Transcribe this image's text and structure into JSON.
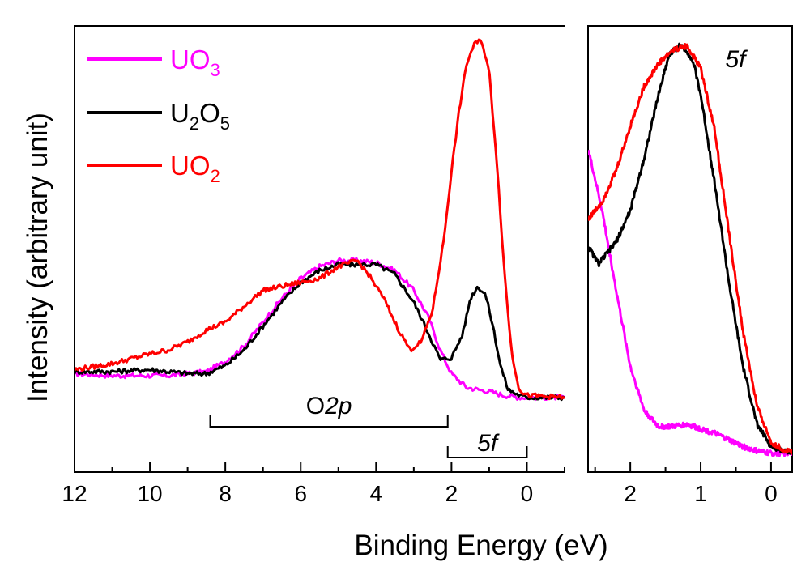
{
  "chart_data": [
    {
      "type": "line",
      "panel": "main",
      "xlabel": "Binding Energy (eV)",
      "ylabel": "Intensity (arbitrary unit)",
      "xlim": [
        12,
        -1
      ],
      "ylim": [
        0,
        1
      ],
      "x_direction": "reversed",
      "x_ticks": [
        "12",
        "10",
        "8",
        "6",
        "4",
        "2",
        "0"
      ],
      "y_ticks": "none",
      "grid": false,
      "legend_position": "top-left",
      "legend": [
        {
          "base": "UO",
          "sub": "3",
          "suffix": "",
          "color": "#ff00ff"
        },
        {
          "base": "U",
          "sub": "2",
          "mid": "O",
          "sub2": "5",
          "color": "#000000"
        },
        {
          "base": "UO",
          "sub": "2",
          "suffix": "",
          "color": "#ff0000"
        }
      ],
      "annotations": {
        "o2p": {
          "pre": "O",
          "ital": "2p",
          "from_x": 8.4,
          "to_x": 2.1
        },
        "f5": {
          "text": "5f",
          "from_x": 2.1,
          "to_x": 0
        }
      },
      "series": [
        {
          "name": "UO3",
          "color": "#ff00ff",
          "x": [
            12,
            11,
            10,
            9.5,
            9,
            8.5,
            8,
            7.5,
            7,
            6.5,
            6,
            5.5,
            5,
            4.5,
            4,
            3.5,
            3,
            2.6,
            2.3,
            2.0,
            1.6,
            1.0,
            0.6,
            0.2,
            -1
          ],
          "y": [
            0.14,
            0.135,
            0.135,
            0.135,
            0.14,
            0.145,
            0.17,
            0.21,
            0.27,
            0.33,
            0.38,
            0.41,
            0.425,
            0.425,
            0.42,
            0.4,
            0.35,
            0.28,
            0.2,
            0.14,
            0.105,
            0.095,
            0.085,
            0.08,
            0.08
          ]
        },
        {
          "name": "U2O5",
          "color": "#000000",
          "x": [
            12,
            11,
            10,
            9.5,
            9,
            8.5,
            8,
            7.5,
            7,
            6.5,
            6,
            5.5,
            5,
            4.5,
            4,
            3.5,
            3,
            2.6,
            2.3,
            2.0,
            1.7,
            1.5,
            1.3,
            1.1,
            0.9,
            0.7,
            0.5,
            0.2,
            0,
            -1
          ],
          "y": [
            0.145,
            0.145,
            0.15,
            0.145,
            0.14,
            0.14,
            0.16,
            0.2,
            0.26,
            0.32,
            0.37,
            0.4,
            0.415,
            0.415,
            0.415,
            0.39,
            0.32,
            0.24,
            0.175,
            0.18,
            0.24,
            0.33,
            0.36,
            0.34,
            0.26,
            0.16,
            0.1,
            0.085,
            0.08,
            0.08
          ]
        },
        {
          "name": "UO2",
          "color": "#ff0000",
          "x": [
            12,
            11,
            10,
            9.5,
            9,
            8.5,
            8,
            7.5,
            7,
            6.5,
            6,
            5.5,
            5,
            4.5,
            4.2,
            3.8,
            3.4,
            3.1,
            2.8,
            2.5,
            2.2,
            2.0,
            1.8,
            1.6,
            1.4,
            1.2,
            1.0,
            0.8,
            0.6,
            0.4,
            0.2,
            0,
            -1
          ],
          "y": [
            0.15,
            0.165,
            0.19,
            0.2,
            0.22,
            0.25,
            0.27,
            0.31,
            0.35,
            0.36,
            0.37,
            0.38,
            0.41,
            0.425,
            0.39,
            0.33,
            0.25,
            0.2,
            0.22,
            0.3,
            0.48,
            0.65,
            0.8,
            0.92,
            0.97,
            0.98,
            0.9,
            0.68,
            0.4,
            0.19,
            0.1,
            0.085,
            0.08
          ]
        }
      ]
    },
    {
      "type": "line",
      "panel": "inset-right",
      "title": "5f",
      "xlim": [
        2.6,
        -0.3
      ],
      "ylim": [
        0,
        1
      ],
      "x_direction": "reversed",
      "x_ticks": [
        "2",
        "1",
        "0"
      ],
      "y_ticks": "none",
      "series": [
        {
          "name": "UO3",
          "color": "#ff00ff",
          "x": [
            2.6,
            2.4,
            2.2,
            2.0,
            1.8,
            1.6,
            1.4,
            1.2,
            1.0,
            0.8,
            0.6,
            0.4,
            0.2,
            0,
            -0.3
          ],
          "y": [
            0.74,
            0.6,
            0.42,
            0.25,
            0.15,
            0.115,
            0.115,
            0.12,
            0.11,
            0.1,
            0.085,
            0.07,
            0.06,
            0.055,
            0.055
          ]
        },
        {
          "name": "U2O5",
          "color": "#000000",
          "x": [
            2.6,
            2.45,
            2.35,
            2.2,
            2.0,
            1.8,
            1.6,
            1.45,
            1.3,
            1.2,
            1.1,
            1.0,
            0.8,
            0.6,
            0.4,
            0.2,
            0,
            -0.2,
            -0.3
          ],
          "y": [
            0.52,
            0.48,
            0.5,
            0.53,
            0.6,
            0.72,
            0.86,
            0.95,
            0.97,
            0.96,
            0.93,
            0.86,
            0.66,
            0.44,
            0.25,
            0.12,
            0.07,
            0.06,
            0.06
          ]
        },
        {
          "name": "UO2",
          "color": "#ff0000",
          "x": [
            2.6,
            2.4,
            2.2,
            2.0,
            1.8,
            1.6,
            1.4,
            1.2,
            1.0,
            0.8,
            0.6,
            0.4,
            0.2,
            0,
            -0.2,
            -0.3
          ],
          "y": [
            0.58,
            0.62,
            0.69,
            0.79,
            0.88,
            0.93,
            0.96,
            0.97,
            0.92,
            0.78,
            0.55,
            0.33,
            0.16,
            0.08,
            0.06,
            0.06
          ]
        }
      ]
    }
  ]
}
